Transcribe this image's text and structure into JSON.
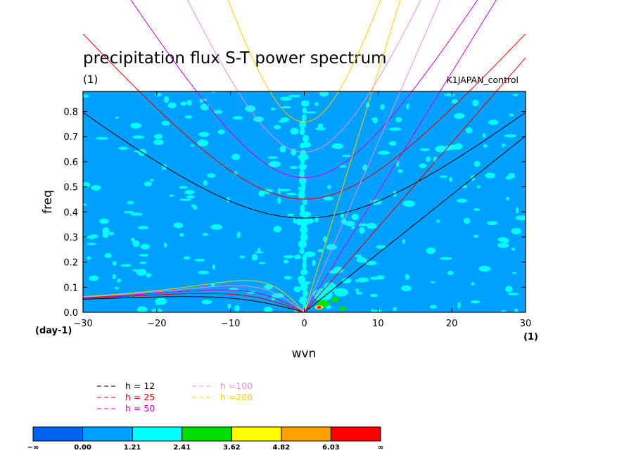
{
  "chart_data": {
    "type": "heatmap",
    "title": "precipitation flux S-T power spectrum",
    "subtitle_left": "(1)",
    "subtitle_right": "K1JAPAN_control",
    "xlabel": "wvn",
    "ylabel": "freq",
    "x_unit_label": "(1)",
    "y_unit_label": "(day-1)",
    "xlim": [
      -30,
      30
    ],
    "ylim": [
      0,
      0.88
    ],
    "x_ticks": [
      -30,
      -20,
      -10,
      0,
      10,
      20,
      30
    ],
    "x_tick_labels": [
      "−30",
      "−20",
      "−10",
      "0",
      "10",
      "20",
      "30"
    ],
    "y_ticks": [
      0.0,
      0.1,
      0.2,
      0.3,
      0.4,
      0.5,
      0.6,
      0.7,
      0.8
    ],
    "y_tick_labels": [
      "0.0",
      "0.1",
      "0.2",
      "0.3",
      "0.4",
      "0.5",
      "0.6",
      "0.7",
      "0.8"
    ],
    "background_level_color": "#00a0ff",
    "features": [
      {
        "name": "cyan speckle (1.21-2.41)",
        "note": "scattered across domain, vertical band near wvn 0"
      },
      {
        "name": "kelvin-wave enhancement",
        "x_range": [
          0,
          10
        ],
        "freq_range": [
          0,
          0.15
        ],
        "peak": {
          "wvn": 2,
          "freq": 0.02,
          "level": "6.03-inf"
        }
      }
    ],
    "dispersion_curves": [
      {
        "name": "h = 12",
        "h": 12,
        "color": "#000000"
      },
      {
        "name": "h = 25",
        "h": 25,
        "color": "#e00000"
      },
      {
        "name": "h = 50",
        "h": 50,
        "color": "#d000d0"
      },
      {
        "name": "h =100",
        "h": 100,
        "color": "#e090e0"
      },
      {
        "name": "h =200",
        "h": 200,
        "color": "#f0d000"
      }
    ],
    "curve_families": [
      "kelvin",
      "inertia-gravity n=1",
      "equatorial rossby n=1"
    ],
    "colorbar": {
      "levels": [
        "−∞",
        "0.00",
        "1.21",
        "2.41",
        "3.62",
        "4.82",
        "6.03",
        "∞"
      ],
      "colors": [
        "#0064f0",
        "#00a0ff",
        "#00ffff",
        "#00e000",
        "#ffff00",
        "#ffa000",
        "#ff0000"
      ]
    }
  }
}
